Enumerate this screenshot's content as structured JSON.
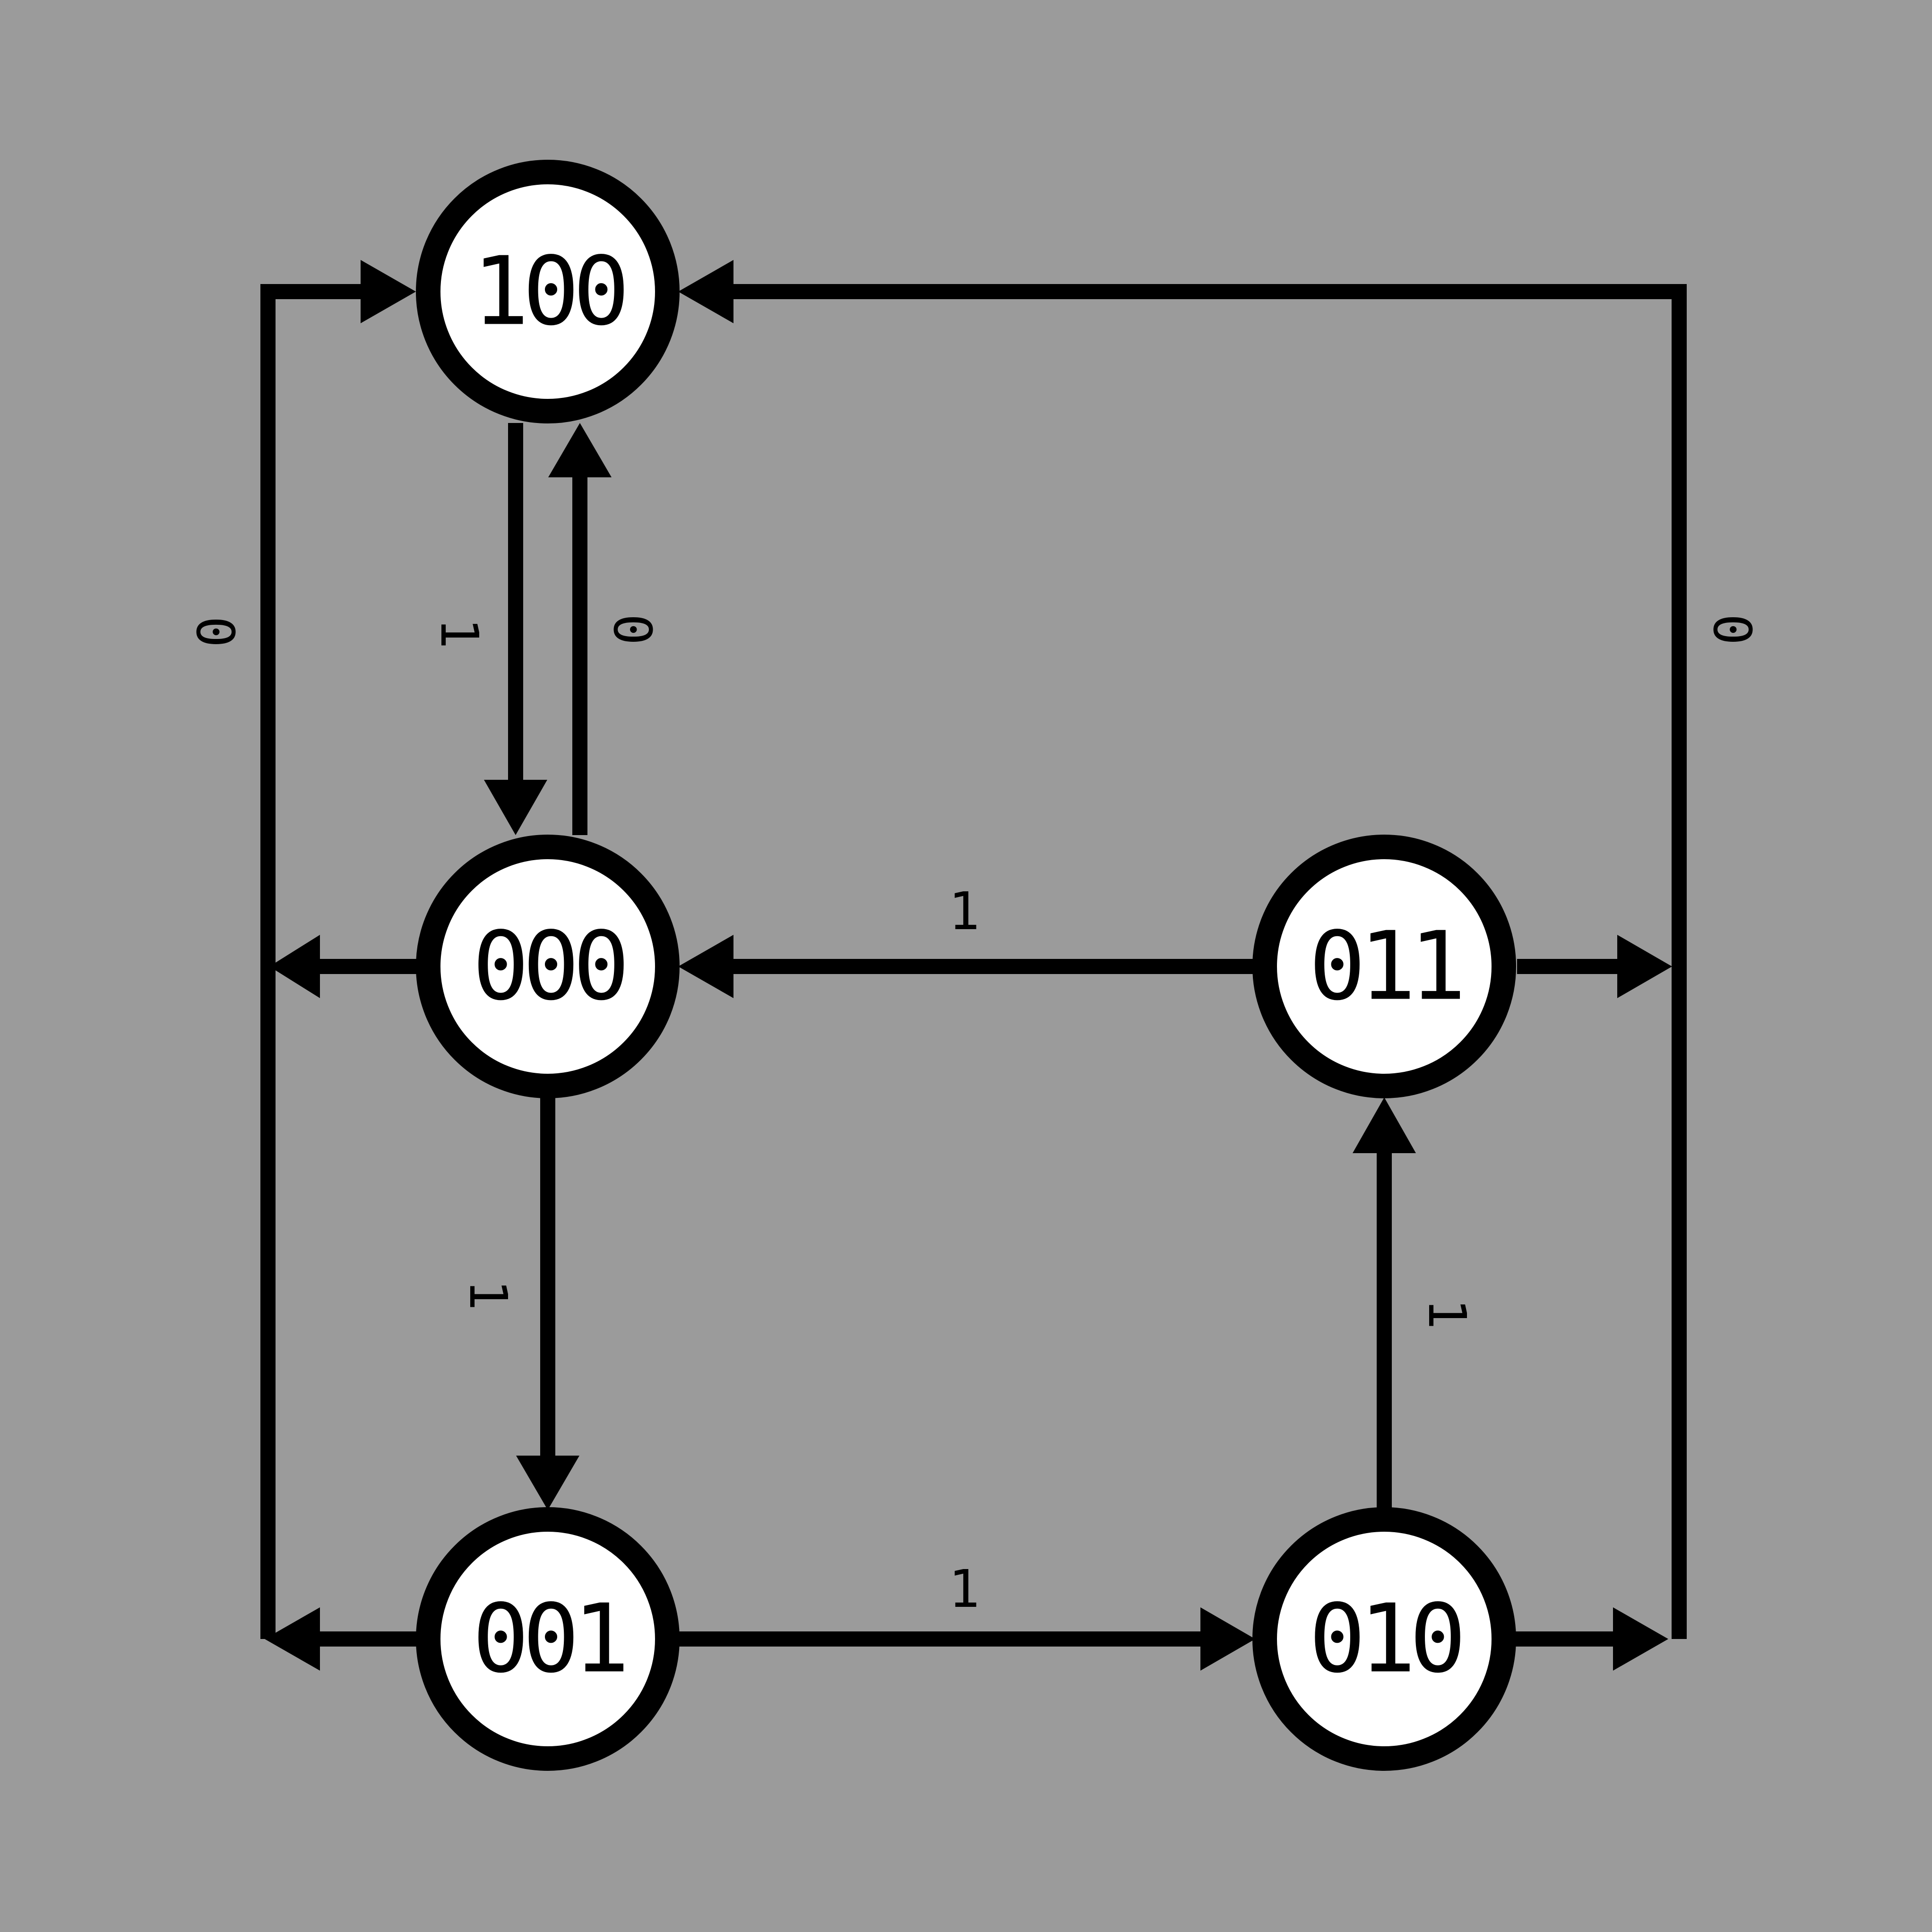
{
  "background_color": "#9b9b9b",
  "node_fill_color": "#ffffff",
  "stroke_color": "#000000",
  "nodes": {
    "n100": {
      "label": "100"
    },
    "n000": {
      "label": "000"
    },
    "n011": {
      "label": "011"
    },
    "n001": {
      "label": "001"
    },
    "n010": {
      "label": "010"
    }
  },
  "edges": {
    "e100_000": {
      "from": "100",
      "to": "000",
      "label": "1"
    },
    "e000_100": {
      "from": "000",
      "to": "100",
      "label": "0"
    },
    "e000_001": {
      "from": "000",
      "to": "001",
      "label": "1"
    },
    "e011_000": {
      "from": "011",
      "to": "000",
      "label": "1"
    },
    "e001_010": {
      "from": "001",
      "to": "010",
      "label": "1"
    },
    "e010_011": {
      "from": "010",
      "to": "011",
      "label": "1"
    },
    "left_loop": {
      "from": [
        "000",
        "001"
      ],
      "to": "100",
      "label": "0"
    },
    "right_loop": {
      "from": [
        "011",
        "010"
      ],
      "to": "100",
      "label": "0"
    }
  }
}
